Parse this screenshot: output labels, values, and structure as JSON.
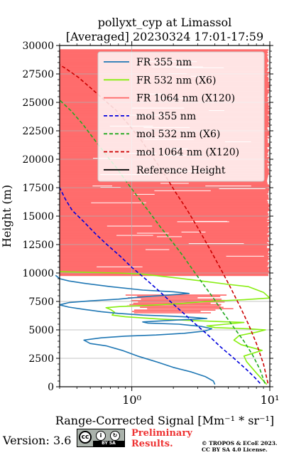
{
  "chart_data": {
    "type": "line",
    "title": "pollyxt_cyp at Limassol",
    "subtitle": "[Averaged] 20230324 17:01-17:59",
    "xlabel": "Range-Corrected Signal [Mm⁻¹ * sr⁻¹]",
    "ylabel": "Height (m)",
    "x_scale": "log",
    "xlim": [
      0.3,
      10
    ],
    "ylim": [
      0,
      30000
    ],
    "x_ticks": [
      {
        "value": 1,
        "label": "10⁰"
      },
      {
        "value": 10,
        "label": "10¹"
      }
    ],
    "y_ticks": [
      0,
      2500,
      5000,
      7500,
      10000,
      12500,
      15000,
      17500,
      20000,
      22500,
      25000,
      27500,
      30000
    ],
    "y_tick_labels": [
      "0",
      "2500",
      "5000",
      "7500",
      "10000",
      "12500",
      "15000",
      "17500",
      "20000",
      "22500",
      "25000",
      "27500",
      "30000"
    ],
    "grid": true,
    "legend_position": "top-right",
    "series": [
      {
        "name": "FR 355 nm",
        "color": "#1f77b4",
        "style": "solid",
        "points": [
          [
            4.0,
            200
          ],
          [
            3.9,
            500
          ],
          [
            3.4,
            900
          ],
          [
            2.7,
            1300
          ],
          [
            2.0,
            1700
          ],
          [
            1.5,
            2200
          ],
          [
            1.1,
            2700
          ],
          [
            0.85,
            3200
          ],
          [
            0.65,
            3600
          ],
          [
            0.5,
            3800
          ],
          [
            0.45,
            4100
          ],
          [
            0.6,
            4300
          ],
          [
            0.9,
            4450
          ],
          [
            1.5,
            4550
          ],
          [
            2.4,
            4700
          ],
          [
            3.4,
            4900
          ],
          [
            3.8,
            5100
          ],
          [
            3.2,
            5300
          ],
          [
            2.2,
            5500
          ],
          [
            1.3,
            5600
          ],
          [
            1.2,
            5700
          ],
          [
            2.0,
            5850
          ],
          [
            3.5,
            6000
          ],
          [
            2.8,
            6100
          ],
          [
            2.0,
            6200
          ],
          [
            1.2,
            6300
          ],
          [
            0.8,
            6450
          ],
          [
            0.6,
            6600
          ],
          [
            0.45,
            6800
          ],
          [
            0.35,
            7000
          ],
          [
            0.3,
            7200
          ],
          [
            0.35,
            7400
          ],
          [
            0.5,
            7550
          ],
          [
            0.8,
            7700
          ],
          [
            1.2,
            7900
          ],
          [
            1.8,
            8050
          ],
          [
            2.6,
            8200
          ],
          [
            2.0,
            8350
          ],
          [
            1.2,
            8500
          ],
          [
            0.7,
            8800
          ],
          [
            0.45,
            9100
          ],
          [
            0.35,
            9300
          ],
          [
            0.3,
            9500
          ],
          [
            0.28,
            9800
          ]
        ]
      },
      {
        "name": "FR 532 nm (X6)",
        "color": "#88ee11",
        "style": "solid",
        "points": [
          [
            9.5,
            200
          ],
          [
            8.0,
            1200
          ],
          [
            6.8,
            2200
          ],
          [
            6.5,
            2700
          ],
          [
            8.8,
            3200
          ],
          [
            6.2,
            3700
          ],
          [
            5.5,
            4100
          ],
          [
            6.0,
            4500
          ],
          [
            8.0,
            4800
          ],
          [
            9.3,
            5000
          ],
          [
            7.0,
            5100
          ],
          [
            4.0,
            5200
          ],
          [
            3.5,
            5350
          ],
          [
            4.8,
            5500
          ],
          [
            6.5,
            5650
          ],
          [
            3.0,
            5800
          ],
          [
            1.6,
            5950
          ],
          [
            0.9,
            6150
          ],
          [
            0.72,
            6300
          ],
          [
            0.75,
            6550
          ],
          [
            0.7,
            6800
          ],
          [
            0.65,
            6950
          ],
          [
            0.82,
            7050
          ],
          [
            1.3,
            7150
          ],
          [
            2.2,
            7300
          ],
          [
            3.5,
            7500
          ],
          [
            6.5,
            7650
          ],
          [
            10.0,
            7800
          ],
          [
            9.0,
            8300
          ],
          [
            7.0,
            8800
          ],
          [
            5.0,
            9000
          ],
          [
            3.2,
            9300
          ],
          [
            2.0,
            9600
          ],
          [
            1.2,
            9900
          ],
          [
            0.8,
            10000
          ],
          [
            0.5,
            10050
          ],
          [
            0.35,
            10100
          ],
          [
            0.3,
            10120
          ]
        ]
      },
      {
        "name": "FR 1064 nm (X120)",
        "color": "#ff6666",
        "style": "solid",
        "points": [
          [
            10,
            7700
          ],
          [
            1.0,
            7800
          ],
          [
            0.7,
            7900
          ],
          [
            3.5,
            8000
          ],
          [
            1.2,
            8100
          ],
          [
            0.5,
            8200
          ],
          [
            0.3,
            8300
          ]
        ]
      },
      {
        "name": "mol 355 nm",
        "color": "#0000dd",
        "style": "dashed",
        "points": [
          [
            8.5,
            300
          ],
          [
            7.8,
            800
          ],
          [
            6.8,
            1500
          ],
          [
            5.5,
            2500
          ],
          [
            4.4,
            3500
          ],
          [
            3.6,
            4500
          ],
          [
            2.9,
            5500
          ],
          [
            2.35,
            6500
          ],
          [
            1.9,
            7500
          ],
          [
            1.55,
            8500
          ],
          [
            1.25,
            9500
          ],
          [
            1.0,
            10500
          ],
          [
            0.82,
            11500
          ],
          [
            0.66,
            12500
          ],
          [
            0.54,
            13500
          ],
          [
            0.45,
            14500
          ],
          [
            0.37,
            15500
          ],
          [
            0.33,
            16500
          ],
          [
            0.3,
            17500
          ]
        ]
      },
      {
        "name": "mol 532 nm (X6)",
        "color": "#22aa22",
        "style": "dashed",
        "points": [
          [
            9.2,
            300
          ],
          [
            8.5,
            1500
          ],
          [
            7.5,
            2800
          ],
          [
            6.5,
            4000
          ],
          [
            5.5,
            5200
          ],
          [
            4.6,
            6500
          ],
          [
            3.9,
            7800
          ],
          [
            3.3,
            9000
          ],
          [
            2.8,
            10200
          ],
          [
            2.35,
            11500
          ],
          [
            1.95,
            12800
          ],
          [
            1.62,
            14000
          ],
          [
            1.35,
            15300
          ],
          [
            1.12,
            16600
          ],
          [
            0.93,
            17900
          ],
          [
            0.78,
            19200
          ],
          [
            0.64,
            20500
          ],
          [
            0.53,
            21800
          ],
          [
            0.44,
            23100
          ],
          [
            0.36,
            24300
          ],
          [
            0.3,
            25200
          ]
        ]
      },
      {
        "name": "mol 1064 nm (X120)",
        "color": "#cc0000",
        "style": "dashed",
        "points": [
          [
            9.7,
            300
          ],
          [
            9.0,
            2000
          ],
          [
            8.0,
            3800
          ],
          [
            7.0,
            5500
          ],
          [
            6.0,
            7200
          ],
          [
            5.1,
            8900
          ],
          [
            4.3,
            10600
          ],
          [
            3.6,
            12300
          ],
          [
            3.0,
            14000
          ],
          [
            2.5,
            15600
          ],
          [
            2.05,
            17200
          ],
          [
            1.7,
            18800
          ],
          [
            1.4,
            20300
          ],
          [
            1.15,
            21800
          ],
          [
            0.94,
            23100
          ],
          [
            0.77,
            24300
          ],
          [
            0.62,
            25300
          ],
          [
            0.5,
            26300
          ],
          [
            0.41,
            27200
          ],
          [
            0.33,
            28000
          ],
          [
            0.3,
            28300
          ]
        ]
      },
      {
        "name": "Reference Height",
        "color": "#000000",
        "style": "solid",
        "points": []
      }
    ],
    "fr1064_band": {
      "noise_start_height": 7500,
      "band_top_height": 29700,
      "line_color": "#ff6666"
    }
  },
  "footer": {
    "version": "Version: 3.6",
    "cc_label": "BY SA",
    "preliminary": [
      "Preliminary",
      "Results."
    ],
    "copyright": [
      "© TROPOS & ECoE 2023.",
      "CC BY SA 4.0 License."
    ]
  }
}
